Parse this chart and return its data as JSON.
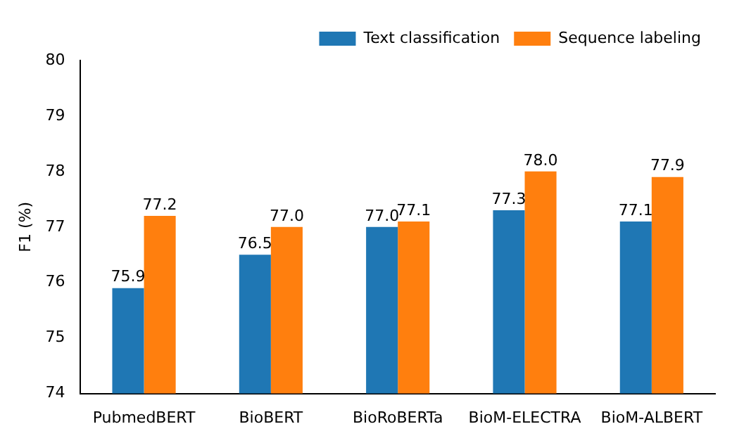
{
  "chart_data": {
    "type": "bar",
    "ylabel": "F1 (%)",
    "categories": [
      "PubmedBERT",
      "BioBERT",
      "BioRoBERTa",
      "BioM-ELECTRA",
      "BioM-ALBERT"
    ],
    "series": [
      {
        "name": "Text classification",
        "color": "#1f77b4",
        "values": [
          75.9,
          76.5,
          77.0,
          77.3,
          77.1
        ],
        "value_labels": [
          "75.9",
          "76.5",
          "77.0",
          "77.3",
          "77.1"
        ]
      },
      {
        "name": "Sequence labeling",
        "color": "#ff7f0e",
        "values": [
          77.2,
          77.0,
          77.1,
          78.0,
          77.9
        ],
        "value_labels": [
          "77.2",
          "77.0",
          "77.1",
          "78.0",
          "77.9"
        ]
      }
    ],
    "ylim": [
      74,
      80
    ],
    "yticks": [
      74,
      75,
      76,
      77,
      78,
      79,
      80
    ],
    "grid": false,
    "legend": "top right"
  }
}
